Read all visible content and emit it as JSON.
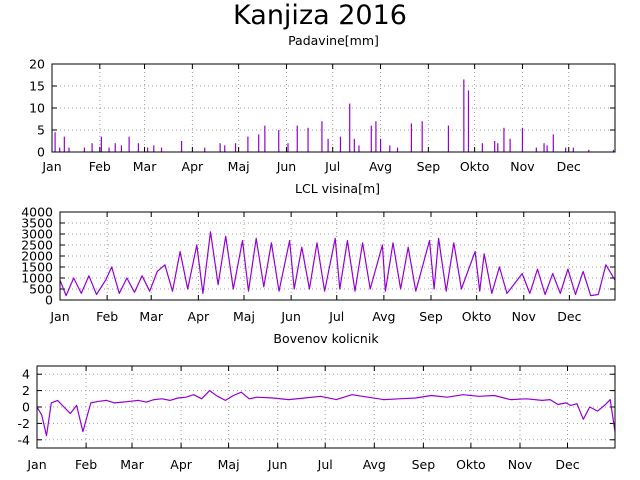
{
  "title": "Kanjiza 2016",
  "colors": {
    "series": "#9400d3",
    "frame": "#000000",
    "grid": "#a0a0a0"
  },
  "chart_data": [
    {
      "type": "bar",
      "title": "Padavine[mm]",
      "x_ticks": [
        "Jan",
        "Feb",
        "Mar",
        "Apr",
        "Maj",
        "Jun",
        "Jul",
        "Avg",
        "Sep",
        "Okto",
        "Nov",
        "Dec"
      ],
      "ylim": [
        0,
        20
      ],
      "y_ticks": [
        "0",
        "5",
        "10",
        "15",
        "20"
      ],
      "grid": true,
      "x": [
        3,
        6,
        9,
        12,
        22,
        27,
        33,
        38,
        42,
        46,
        51,
        57,
        63,
        67,
        72,
        85,
        100,
        110,
        113,
        120,
        128,
        135,
        139,
        148,
        154,
        160,
        167,
        176,
        180,
        188,
        194,
        197,
        200,
        208,
        211,
        214,
        220,
        225,
        234,
        241,
        258,
        268,
        271,
        280,
        288,
        290,
        294,
        298,
        306,
        315,
        320,
        322,
        326,
        334,
        339,
        349,
        365
      ],
      "values": [
        4.5,
        1,
        3.5,
        1,
        1,
        2,
        3.5,
        1,
        2,
        1.5,
        3.5,
        2,
        1,
        1.5,
        1,
        2.5,
        1,
        2,
        1.5,
        2,
        3.5,
        4,
        6,
        5,
        2,
        6,
        5.5,
        7,
        3,
        3.5,
        11,
        3,
        1.5,
        6,
        7,
        3,
        1.5,
        1,
        6.5,
        7,
        6,
        16.5,
        14,
        2,
        2.5,
        2,
        5.5,
        3,
        5.5,
        1,
        2,
        1.5,
        4,
        1,
        1,
        0.5,
        0.5
      ]
    },
    {
      "type": "line",
      "title": "LCL visina[m]",
      "x_ticks": [
        "Jan",
        "Feb",
        "Mar",
        "Apr",
        "Maj",
        "Jun",
        "Jul",
        "Avg",
        "Sep",
        "Okto",
        "Nov",
        "Dec"
      ],
      "ylim": [
        0,
        4000
      ],
      "y_ticks": [
        "0",
        "500",
        "1000",
        "1500",
        "2000",
        "2500",
        "3000",
        "3500",
        "4000"
      ],
      "grid": true,
      "x": [
        1,
        5,
        10,
        15,
        20,
        25,
        31,
        35,
        40,
        45,
        50,
        55,
        60,
        65,
        70,
        75,
        80,
        85,
        91,
        95,
        100,
        105,
        110,
        115,
        121,
        125,
        130,
        135,
        140,
        145,
        152,
        155,
        160,
        165,
        170,
        175,
        182,
        185,
        190,
        195,
        200,
        205,
        213,
        215,
        220,
        225,
        230,
        235,
        244,
        247,
        250,
        255,
        260,
        265,
        274,
        277,
        280,
        285,
        290,
        295,
        305,
        310,
        315,
        320,
        325,
        330,
        335,
        340,
        345,
        350,
        355,
        360,
        366
      ],
      "values": [
        900,
        200,
        1000,
        300,
        1100,
        250,
        900,
        1500,
        300,
        1000,
        350,
        1100,
        400,
        1300,
        1600,
        400,
        2200,
        500,
        2500,
        300,
        3100,
        700,
        2900,
        500,
        2700,
        400,
        2800,
        600,
        2600,
        400,
        2700,
        500,
        2400,
        500,
        2600,
        400,
        2800,
        500,
        2700,
        400,
        2600,
        500,
        2500,
        400,
        2600,
        500,
        2400,
        400,
        2700,
        500,
        2800,
        400,
        2600,
        500,
        2200,
        400,
        2100,
        300,
        1500,
        300,
        1200,
        300,
        1400,
        250,
        1200,
        300,
        1400,
        250,
        1300,
        200,
        250,
        1600,
        900
      ]
    },
    {
      "type": "line",
      "title": "Bovenov kolicnik",
      "x_ticks": [
        "Jan",
        "Feb",
        "Mar",
        "Apr",
        "Maj",
        "Jun",
        "Jul",
        "Avg",
        "Sep",
        "Okto",
        "Nov",
        "Dec"
      ],
      "ylim": [
        -5,
        5
      ],
      "y_ticks": [
        "-4",
        "-2",
        "0",
        "2",
        "4"
      ],
      "grid": true,
      "x": [
        1,
        4,
        7,
        10,
        14,
        18,
        22,
        26,
        30,
        35,
        40,
        45,
        50,
        55,
        60,
        65,
        70,
        75,
        80,
        85,
        90,
        95,
        100,
        105,
        110,
        115,
        120,
        125,
        130,
        135,
        140,
        150,
        160,
        170,
        180,
        190,
        200,
        210,
        220,
        230,
        240,
        250,
        260,
        270,
        280,
        290,
        300,
        310,
        320,
        325,
        330,
        335,
        338,
        342,
        346,
        350,
        355,
        360,
        363,
        366
      ],
      "values": [
        0,
        -1,
        -3.5,
        0.5,
        0.8,
        0,
        -0.8,
        0.2,
        -3,
        0.5,
        0.7,
        0.8,
        0.5,
        0.6,
        0.7,
        0.8,
        0.6,
        0.9,
        1,
        0.8,
        1.1,
        1.2,
        1.5,
        1,
        2,
        1.3,
        0.8,
        1.4,
        1.8,
        1,
        1.2,
        1.1,
        0.9,
        1.1,
        1.3,
        0.9,
        1.5,
        1.2,
        0.9,
        1,
        1.1,
        1.4,
        1.2,
        1.5,
        1.3,
        1.4,
        0.9,
        1,
        0.8,
        0.9,
        0.3,
        0.5,
        0.2,
        0.4,
        -1.5,
        0,
        -0.5,
        0.3,
        0.9,
        -3
      ]
    }
  ]
}
